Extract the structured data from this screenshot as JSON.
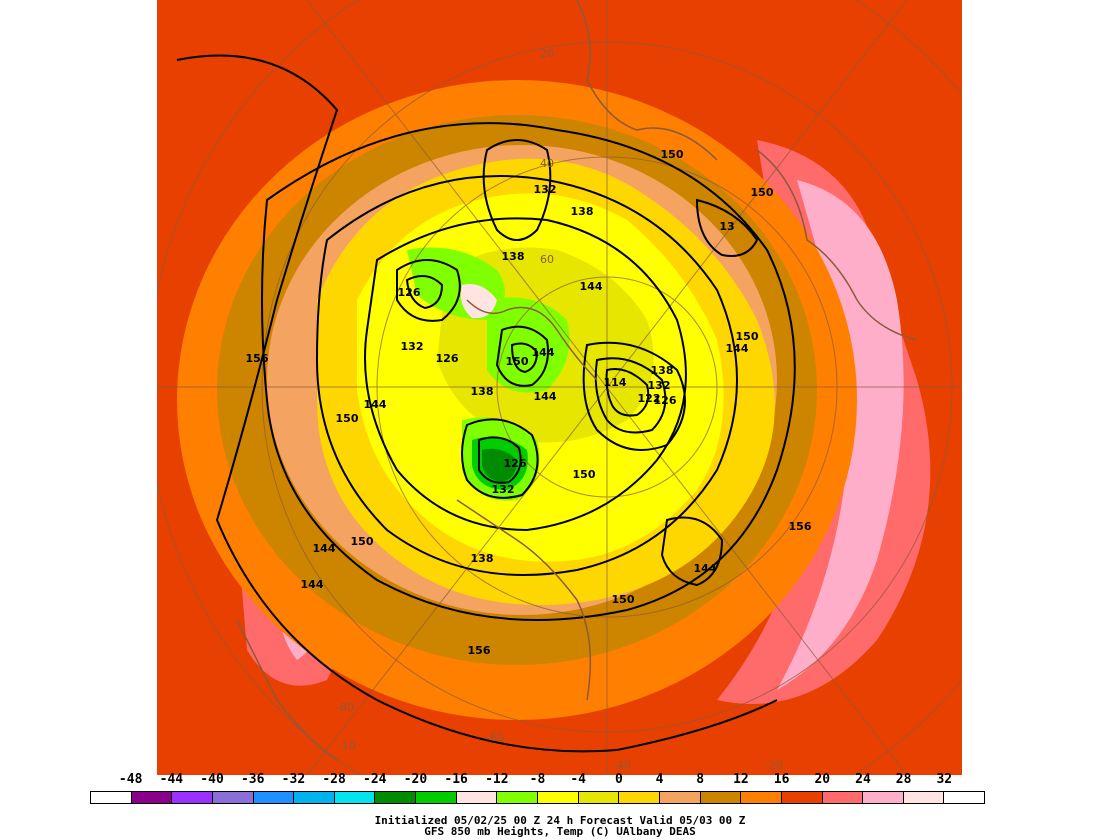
{
  "map": {
    "type": "polar-stereographic-weather-map",
    "variable": "GFS 850 mb Heights, Temp (C)",
    "contour_unit": "dam",
    "contour_labels": [
      {
        "text": "150",
        "region": "north-top"
      },
      {
        "text": "150",
        "region": "northeast"
      },
      {
        "text": "132",
        "region": "north-center"
      },
      {
        "text": "138",
        "region": "north-center"
      },
      {
        "text": "138",
        "region": "north-center-left"
      },
      {
        "text": "144",
        "region": "center-north"
      },
      {
        "text": "126",
        "region": "west-low"
      },
      {
        "text": "13",
        "region": "northeast-low"
      },
      {
        "text": "150",
        "region": "east"
      },
      {
        "text": "144",
        "region": "east"
      },
      {
        "text": "156",
        "region": "far-west"
      },
      {
        "text": "132",
        "region": "west"
      },
      {
        "text": "126",
        "region": "west"
      },
      {
        "text": "150",
        "region": "center"
      },
      {
        "text": "144",
        "region": "center"
      },
      {
        "text": "114",
        "region": "center-east-low"
      },
      {
        "text": "138",
        "region": "center-east"
      },
      {
        "text": "132",
        "region": "center-east"
      },
      {
        "text": "138",
        "region": "center-left"
      },
      {
        "text": "144",
        "region": "center-left"
      },
      {
        "text": "150",
        "region": "west"
      },
      {
        "text": "144",
        "region": "west"
      },
      {
        "text": "122",
        "region": "center-east"
      },
      {
        "text": "126",
        "region": "center-east"
      },
      {
        "text": "126",
        "region": "south-center-low"
      },
      {
        "text": "132",
        "region": "south-center-low"
      },
      {
        "text": "150",
        "region": "south-center"
      },
      {
        "text": "156",
        "region": "southeast"
      },
      {
        "text": "144",
        "region": "southwest"
      },
      {
        "text": "150",
        "region": "southwest"
      },
      {
        "text": "144",
        "region": "southwest"
      },
      {
        "text": "138",
        "region": "south"
      },
      {
        "text": "144",
        "region": "south-east"
      },
      {
        "text": "150",
        "region": "south"
      },
      {
        "text": "156",
        "region": "far-south"
      }
    ],
    "grid_labels": [
      {
        "text": "20",
        "region": "top"
      },
      {
        "text": "40",
        "region": "upper"
      },
      {
        "text": "60",
        "region": "upper-inner"
      },
      {
        "text": "-20",
        "region": "bottom-right"
      },
      {
        "text": "-40",
        "region": "bottom"
      },
      {
        "text": "-60",
        "region": "bottom-inner"
      },
      {
        "text": "-80",
        "region": "bottom-left"
      },
      {
        "text": "-10",
        "region": "bottom-left-edge"
      }
    ],
    "colors": {
      "background": "#e84000",
      "coastline": "#8b5a3c",
      "contour": "#000000"
    }
  },
  "colorbar": {
    "labels": [
      "-48",
      "-44",
      "-40",
      "-36",
      "-32",
      "-28",
      "-24",
      "-20",
      "-16",
      "-12",
      "-8",
      "-4",
      "0",
      "4",
      "8",
      "12",
      "16",
      "20",
      "24",
      "28",
      "32"
    ],
    "colors": [
      "#ffffff",
      "#8b008b",
      "#9b30ff",
      "#8a6fd8",
      "#1e90ff",
      "#00b2ee",
      "#00e5ee",
      "#008b00",
      "#00cd00",
      "#ffe4e1",
      "#7fff00",
      "#ffff00",
      "#e6e600",
      "#ffd700",
      "#f4a460",
      "#cd8500",
      "#ff7f00",
      "#e84000",
      "#ff6a6a",
      "#ffaec9",
      "#ffe4e1",
      "#ffffff"
    ]
  },
  "caption": {
    "line1": "Initialized 05/02/25 00 Z  24 h Forecast Valid 05/03 00 Z",
    "line2": "GFS 850 mb  Heights, Temp (C)      UAlbany DEAS"
  }
}
